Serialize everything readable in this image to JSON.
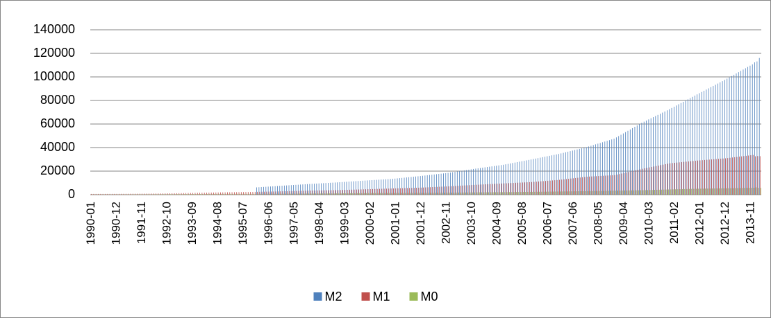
{
  "chart_data": {
    "type": "bar",
    "categories": [
      "1990-01",
      null,
      null,
      null,
      null,
      null,
      null,
      null,
      null,
      null,
      null,
      "1990-12",
      null,
      null,
      null,
      null,
      null,
      null,
      null,
      null,
      null,
      null,
      "1991-11",
      null,
      null,
      null,
      null,
      null,
      null,
      null,
      null,
      null,
      null,
      "1992-10",
      null,
      null,
      null,
      null,
      null,
      null,
      null,
      null,
      null,
      null,
      "1993-09",
      null,
      null,
      null,
      null,
      null,
      null,
      null,
      null,
      null,
      null,
      "1994-08",
      null,
      null,
      null,
      null,
      null,
      null,
      null,
      null,
      null,
      null,
      "1995-07",
      null,
      null,
      null,
      null,
      null,
      null,
      null,
      null,
      null,
      null,
      "1996-06",
      null,
      null,
      null,
      null,
      null,
      null,
      null,
      null,
      null,
      null,
      "1997-05",
      null,
      null,
      null,
      null,
      null,
      null,
      null,
      null,
      null,
      null,
      "1998-04",
      null,
      null,
      null,
      null,
      null,
      null,
      null,
      null,
      null,
      null,
      "1999-03",
      null,
      null,
      null,
      null,
      null,
      null,
      null,
      null,
      null,
      null,
      "2000-02",
      null,
      null,
      null,
      null,
      null,
      null,
      null,
      null,
      null,
      null,
      "2001-01",
      null,
      null,
      null,
      null,
      null,
      null,
      null,
      null,
      null,
      null,
      "2001-12",
      null,
      null,
      null,
      null,
      null,
      null,
      null,
      null,
      null,
      null,
      "2002-11",
      null,
      null,
      null,
      null,
      null,
      null,
      null,
      null,
      null,
      null,
      "2003-10",
      null,
      null,
      null,
      null,
      null,
      null,
      null,
      null,
      null,
      null,
      "2004-09",
      null,
      null,
      null,
      null,
      null,
      null,
      null,
      null,
      null,
      null,
      "2005-08",
      null,
      null,
      null,
      null,
      null,
      null,
      null,
      null,
      null,
      null,
      "2006-07",
      null,
      null,
      null,
      null,
      null,
      null,
      null,
      null,
      null,
      null,
      "2007-06",
      null,
      null,
      null,
      null,
      null,
      null,
      null,
      null,
      null,
      null,
      "2008-05",
      null,
      null,
      null,
      null,
      null,
      null,
      null,
      null,
      null,
      null,
      "2009-04",
      null,
      null,
      null,
      null,
      null,
      null,
      null,
      null,
      null,
      null,
      "2010-03",
      null,
      null,
      null,
      null,
      null,
      null,
      null,
      null,
      null,
      null,
      "2011-02",
      null,
      null,
      null,
      null,
      null,
      null,
      null,
      null,
      null,
      null,
      "2012-01",
      null,
      null,
      null,
      null,
      null,
      null,
      null,
      null,
      null,
      null,
      "2012-12",
      null,
      null,
      null,
      null,
      null,
      null,
      null,
      null,
      null,
      null,
      "2013-11",
      null,
      null,
      null,
      null
    ],
    "series": [
      {
        "name": "M2",
        "color": "#4f81bd",
        "values": [
          null,
          null,
          null,
          null,
          null,
          null,
          null,
          null,
          null,
          null,
          null,
          null,
          null,
          null,
          null,
          null,
          null,
          null,
          null,
          null,
          null,
          null,
          null,
          null,
          null,
          null,
          null,
          null,
          null,
          null,
          null,
          null,
          null,
          null,
          null,
          null,
          null,
          null,
          null,
          null,
          null,
          null,
          null,
          null,
          null,
          null,
          null,
          null,
          null,
          null,
          null,
          null,
          null,
          null,
          null,
          null,
          null,
          null,
          null,
          null,
          null,
          null,
          null,
          null,
          null,
          null,
          null,
          null,
          null,
          null,
          null,
          null,
          6203,
          6331,
          6459,
          6587,
          6715,
          6843,
          6970,
          7098,
          7226,
          7354,
          7482,
          7610,
          7734,
          7858,
          7983,
          8107,
          8231,
          8355,
          8479,
          8603,
          8728,
          8852,
          8976,
          9100,
          9213,
          9325,
          9438,
          9550,
          9663,
          9775,
          9888,
          10000,
          10113,
          10225,
          10338,
          10450,
          10578,
          10707,
          10835,
          10963,
          11092,
          11220,
          11348,
          11477,
          11605,
          11733,
          11862,
          11990,
          12113,
          12235,
          12358,
          12480,
          12603,
          12725,
          12848,
          12970,
          13093,
          13215,
          13338,
          13460,
          13658,
          13855,
          14053,
          14250,
          14448,
          14645,
          14843,
          15040,
          15238,
          15435,
          15633,
          15830,
          16053,
          16275,
          16498,
          16720,
          16943,
          17165,
          17388,
          17610,
          17833,
          18055,
          18278,
          18500,
          18802,
          19103,
          19405,
          19707,
          20008,
          20310,
          20612,
          20913,
          21215,
          21517,
          21818,
          22120,
          22394,
          22668,
          22943,
          23217,
          23491,
          23765,
          24039,
          24313,
          24588,
          24862,
          25136,
          25410,
          25783,
          26155,
          26528,
          26900,
          27273,
          27645,
          28018,
          28390,
          28763,
          29135,
          29508,
          29880,
          30270,
          30660,
          31050,
          31440,
          31830,
          32220,
          32610,
          33000,
          33390,
          33780,
          34170,
          34560,
          35042,
          35523,
          36005,
          36487,
          36968,
          37450,
          37932,
          38413,
          38895,
          39377,
          39858,
          40340,
          40938,
          41537,
          42135,
          42733,
          43332,
          43930,
          44528,
          45127,
          45725,
          46323,
          46922,
          47520,
          48645,
          49770,
          50895,
          52020,
          53145,
          54270,
          55395,
          56520,
          57645,
          58770,
          59895,
          61020,
          61983,
          62947,
          63910,
          64873,
          65837,
          66800,
          67763,
          68727,
          69690,
          70653,
          71617,
          72580,
          73628,
          74677,
          75725,
          76773,
          77822,
          78870,
          79918,
          80967,
          82015,
          83063,
          84112,
          85160,
          86182,
          87203,
          88225,
          89247,
          90268,
          91290,
          92312,
          93333,
          94355,
          95377,
          96398,
          97420,
          98523,
          99625,
          100728,
          101830,
          102933,
          104035,
          105138,
          106240,
          107343,
          108445,
          109548,
          110650,
          112350,
          113160,
          116070
        ]
      },
      {
        "name": "M1",
        "color": "#c0504d",
        "values": [
          645,
          650,
          654,
          658,
          663,
          668,
          672,
          677,
          681,
          686,
          690,
          695,
          711,
          728,
          744,
          761,
          777,
          794,
          810,
          826,
          843,
          859,
          876,
          892,
          915,
          939,
          962,
          985,
          1009,
          1032,
          1055,
          1079,
          1102,
          1125,
          1149,
          1172,
          1210,
          1248,
          1286,
          1324,
          1362,
          1400,
          1438,
          1476,
          1514,
          1552,
          1590,
          1628,
          1664,
          1699,
          1735,
          1770,
          1806,
          1841,
          1877,
          1912,
          1948,
          1983,
          2019,
          2054,
          2081,
          2107,
          2134,
          2161,
          2187,
          2214,
          2241,
          2267,
          2294,
          2321,
          2347,
          2374,
          2414,
          2454,
          2493,
          2533,
          2573,
          2613,
          2653,
          2693,
          2732,
          2772,
          2812,
          2852,
          2905,
          2957,
          3010,
          3062,
          3115,
          3168,
          3220,
          3273,
          3326,
          3378,
          3431,
          3483,
          3517,
          3552,
          3586,
          3620,
          3655,
          3689,
          3723,
          3758,
          3792,
          3826,
          3861,
          3895,
          3952,
          4010,
          4067,
          4125,
          4182,
          4239,
          4297,
          4354,
          4412,
          4469,
          4527,
          4584,
          4645,
          4706,
          4767,
          4828,
          4889,
          4950,
          5010,
          5071,
          5132,
          5193,
          5254,
          5315,
          5371,
          5427,
          5483,
          5539,
          5595,
          5651,
          5707,
          5763,
          5819,
          5875,
          5931,
          5987,
          6079,
          6171,
          6262,
          6354,
          6446,
          6538,
          6629,
          6721,
          6813,
          6905,
          6996,
          7088,
          7198,
          7309,
          7419,
          7529,
          7640,
          7750,
          7860,
          7970,
          8081,
          8191,
          8302,
          8412,
          8511,
          8610,
          8708,
          8807,
          8906,
          9005,
          9103,
          9202,
          9301,
          9400,
          9498,
          9597,
          9691,
          9786,
          9880,
          9974,
          10068,
          10163,
          10257,
          10351,
          10445,
          10540,
          10634,
          10728,
          10884,
          11041,
          11197,
          11353,
          11509,
          11666,
          11822,
          11978,
          12134,
          12291,
          12447,
          12603,
          12824,
          13045,
          13266,
          13487,
          13708,
          13929,
          14151,
          14372,
          14593,
          14814,
          15035,
          15256,
          15370,
          15484,
          15598,
          15711,
          15825,
          15939,
          16053,
          16167,
          16281,
          16394,
          16508,
          16622,
          17070,
          17518,
          17967,
          18415,
          18863,
          19311,
          19759,
          20207,
          20656,
          21104,
          21552,
          22000,
          22389,
          22777,
          23166,
          23554,
          23943,
          24331,
          24720,
          25108,
          25497,
          25885,
          26274,
          26662,
          26857,
          27051,
          27246,
          27441,
          27635,
          27830,
          28025,
          28219,
          28414,
          28609,
          28803,
          28998,
          29154,
          29311,
          29467,
          29624,
          29780,
          29936,
          30093,
          30249,
          30406,
          30562,
          30719,
          30875,
          31113,
          31351,
          31588,
          31826,
          32064,
          32302,
          32539,
          32777,
          33015,
          33253,
          33490,
          33728,
          32600,
          32800,
          32700
        ]
      },
      {
        "name": "M0",
        "color": "#9bbb59",
        "values": [
          237,
          239,
          242,
          244,
          247,
          249,
          252,
          254,
          257,
          259,
          262,
          264,
          269,
          273,
          278,
          282,
          287,
          291,
          296,
          300,
          305,
          309,
          314,
          318,
          328,
          337,
          347,
          357,
          366,
          376,
          386,
          395,
          405,
          415,
          424,
          434,
          447,
          459,
          472,
          485,
          497,
          510,
          523,
          535,
          548,
          561,
          573,
          586,
          598,
          610,
          622,
          634,
          646,
          658,
          669,
          681,
          693,
          705,
          717,
          729,
          734,
          739,
          744,
          749,
          754,
          759,
          763,
          768,
          773,
          778,
          783,
          788,
          796,
          803,
          811,
          819,
          826,
          834,
          842,
          849,
          857,
          865,
          872,
          880,
          892,
          903,
          915,
          926,
          938,
          949,
          961,
          972,
          984,
          995,
          1007,
          1018,
          1027,
          1035,
          1044,
          1052,
          1061,
          1069,
          1078,
          1086,
          1095,
          1103,
          1112,
          1120,
          1139,
          1158,
          1176,
          1195,
          1214,
          1233,
          1252,
          1271,
          1289,
          1308,
          1327,
          1346,
          1356,
          1366,
          1376,
          1386,
          1396,
          1406,
          1415,
          1425,
          1435,
          1445,
          1455,
          1465,
          1474,
          1482,
          1491,
          1500,
          1508,
          1517,
          1526,
          1534,
          1543,
          1552,
          1560,
          1569,
          1582,
          1596,
          1609,
          1622,
          1635,
          1649,
          1662,
          1675,
          1688,
          1702,
          1715,
          1728,
          1749,
          1769,
          1790,
          1810,
          1831,
          1852,
          1872,
          1893,
          1913,
          1934,
          1954,
          1975,
          1989,
          2004,
          2018,
          2032,
          2047,
          2061,
          2075,
          2090,
          2104,
          2118,
          2133,
          2147,
          2168,
          2190,
          2211,
          2232,
          2254,
          2275,
          2296,
          2318,
          2339,
          2360,
          2382,
          2403,
          2428,
          2454,
          2479,
          2504,
          2530,
          2555,
          2580,
          2606,
          2631,
          2656,
          2682,
          2707,
          2734,
          2761,
          2789,
          2816,
          2843,
          2870,
          2897,
          2924,
          2952,
          2979,
          3006,
          3033,
          3065,
          3098,
          3130,
          3163,
          3195,
          3228,
          3260,
          3292,
          3325,
          3357,
          3390,
          3422,
          3456,
          3489,
          3523,
          3556,
          3590,
          3624,
          3657,
          3691,
          3724,
          3758,
          3791,
          3825,
          3878,
          3931,
          3985,
          4038,
          4091,
          4144,
          4197,
          4250,
          4304,
          4357,
          4410,
          4463,
          4514,
          4565,
          4616,
          4667,
          4718,
          4769,
          4820,
          4871,
          4922,
          4973,
          5024,
          5075,
          5108,
          5140,
          5173,
          5205,
          5238,
          5271,
          5303,
          5336,
          5368,
          5401,
          5433,
          5466,
          5499,
          5531,
          5564,
          5596,
          5629,
          5662,
          5694,
          5727,
          5759,
          5792,
          5824,
          5857,
          6200,
          5800,
          5800
        ]
      }
    ],
    "ylim": [
      0,
      140000
    ],
    "yticks": [
      0,
      20000,
      40000,
      60000,
      80000,
      100000,
      120000,
      140000
    ],
    "grid": true,
    "legend": "bottom"
  }
}
